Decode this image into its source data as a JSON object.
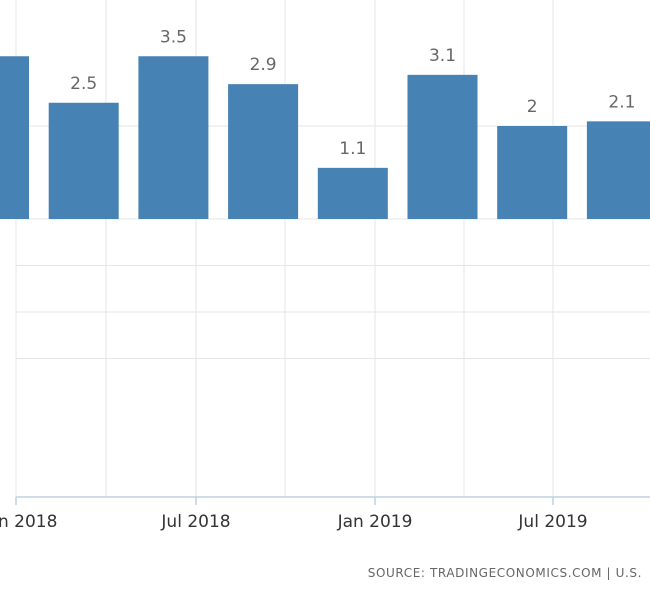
{
  "chart_data": {
    "type": "bar",
    "title": "",
    "xlabel": "",
    "ylabel": "",
    "categories": [
      "",
      "",
      "",
      "",
      "",
      "",
      "",
      ""
    ],
    "values": [
      3.5,
      2.5,
      3.5,
      2.9,
      1.1,
      3.1,
      2,
      2.1
    ],
    "data_labels": [
      "",
      "2.5",
      "3.5",
      "2.9",
      "1.1",
      "3.1",
      "2",
      "2.1"
    ],
    "x_tick_labels": [
      "n 2018",
      "Jul 2018",
      "Jan 2019",
      "Jul 2019"
    ],
    "ylim": [
      -3,
      3.5
    ],
    "grid": true,
    "legend": "none",
    "bar_color": "#4682b4",
    "grid_color": "#e6e6e6",
    "axis_color": "#c0d0e0"
  },
  "source_text": "SOURCE: TRADINGECONOMICS.COM  |  U.S."
}
